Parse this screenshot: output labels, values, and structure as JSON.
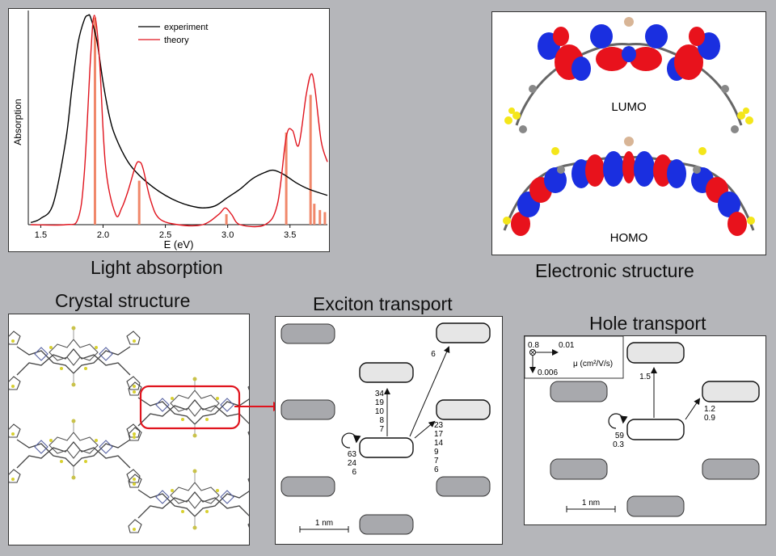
{
  "captions": {
    "light": "Light absorption",
    "electronic": "Electronic structure",
    "crystal": "Crystal structure",
    "exciton": "Exciton transport",
    "hole": "Hole transport"
  },
  "chart_data": {
    "type": "line",
    "xlabel": "E (eV)",
    "ylabel": "Absorption",
    "xlim": [
      1.4,
      3.8
    ],
    "x_ticks": [
      "1.5",
      "2.0",
      "2.5",
      "3.0",
      "3.5"
    ],
    "legend": {
      "placement": "top-center",
      "entries": [
        "experiment",
        "theory"
      ]
    },
    "grid": false,
    "series": [
      {
        "name": "experiment",
        "color": "#000000",
        "x": [
          1.42,
          1.5,
          1.6,
          1.7,
          1.75,
          1.8,
          1.85,
          1.88,
          1.9,
          1.95,
          2.0,
          2.05,
          2.1,
          2.2,
          2.3,
          2.4,
          2.5,
          2.6,
          2.7,
          2.8,
          2.9,
          3.0,
          3.1,
          3.2,
          3.3,
          3.37,
          3.45,
          3.55,
          3.65,
          3.8
        ],
        "y": [
          0.01,
          0.03,
          0.1,
          0.4,
          0.65,
          0.87,
          0.98,
          1.0,
          0.99,
          0.88,
          0.68,
          0.52,
          0.42,
          0.3,
          0.23,
          0.18,
          0.14,
          0.11,
          0.09,
          0.08,
          0.09,
          0.13,
          0.17,
          0.22,
          0.25,
          0.26,
          0.24,
          0.2,
          0.17,
          0.14
        ]
      },
      {
        "name": "theory",
        "color": "#e0141e",
        "x": [
          1.42,
          1.7,
          1.8,
          1.85,
          1.9,
          1.93,
          1.97,
          2.02,
          2.1,
          2.15,
          2.2,
          2.26,
          2.29,
          2.32,
          2.38,
          2.45,
          2.6,
          2.8,
          2.93,
          2.98,
          3.03,
          3.1,
          3.3,
          3.4,
          3.47,
          3.52,
          3.57,
          3.63,
          3.67,
          3.7,
          3.75,
          3.8
        ],
        "y": [
          0.0,
          0.0,
          0.03,
          0.25,
          0.8,
          1.0,
          0.8,
          0.28,
          0.05,
          0.08,
          0.16,
          0.28,
          0.3,
          0.27,
          0.12,
          0.03,
          0.0,
          0.0,
          0.05,
          0.08,
          0.05,
          0.0,
          0.0,
          0.1,
          0.42,
          0.45,
          0.38,
          0.62,
          0.72,
          0.65,
          0.4,
          0.3
        ]
      }
    ],
    "sticks": {
      "color": "#f0876a",
      "x": [
        1.935,
        2.29,
        2.99,
        3.47,
        3.665,
        3.695,
        3.74,
        3.78
      ],
      "y": [
        0.99,
        0.21,
        0.05,
        0.44,
        0.62,
        0.1,
        0.07,
        0.06
      ]
    }
  },
  "orbitals": {
    "lumo": "LUMO",
    "homo": "HOMO"
  },
  "exciton": {
    "rates_left": [
      "63",
      "24",
      "6"
    ],
    "rates_up": [
      "34",
      "19",
      "10",
      "8",
      "7"
    ],
    "rates_right": [
      "23",
      "17",
      "14",
      "9",
      "7",
      "6"
    ],
    "rate_upright": "6",
    "scale_label": "1 nm"
  },
  "hole": {
    "legend": {
      "left": "0.8",
      "right": "0.01",
      "down": "0.006",
      "mu_label": "μ (cm²/V/s)"
    },
    "rates_left": [
      "59",
      "0.3"
    ],
    "rate_up": "1.5",
    "rates_right": [
      "1.2",
      "0.9"
    ],
    "scale_label": "1 nm"
  },
  "colors": {
    "accent_red": "#e0141e",
    "site_gray": "#a8a9ad",
    "site_light": "#e6e6e6",
    "orbital_red": "#e8121c",
    "orbital_blue": "#1a2fe0"
  }
}
